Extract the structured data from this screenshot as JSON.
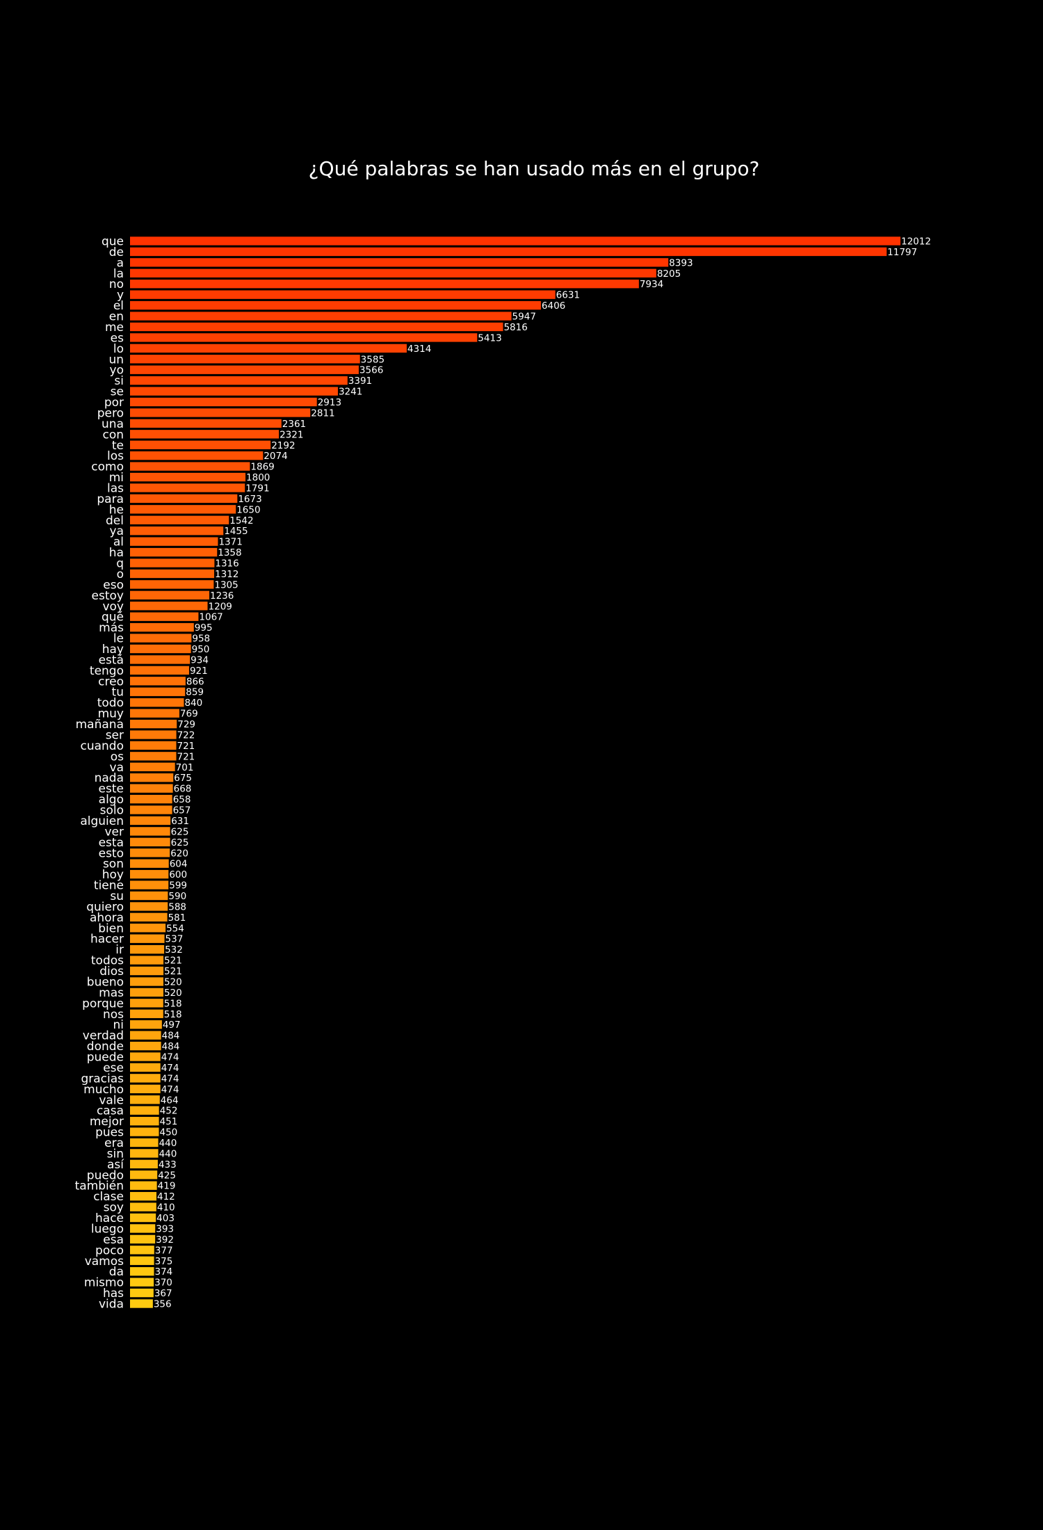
{
  "chart_data": {
    "type": "bar",
    "orientation": "horizontal",
    "title": "¿Qué palabras se han usado más en el grupo?",
    "xlabel": "",
    "ylabel": "",
    "grid": false,
    "colors": {
      "background": "#000000",
      "bar_start": "#ff3300",
      "bar_end": "#ffcc11",
      "text": "#ffffff"
    },
    "categories": [
      "que",
      "de",
      "a",
      "la",
      "no",
      "y",
      "el",
      "en",
      "me",
      "es",
      "lo",
      "un",
      "yo",
      "si",
      "se",
      "por",
      "pero",
      "una",
      "con",
      "te",
      "los",
      "como",
      "mi",
      "las",
      "para",
      "he",
      "del",
      "ya",
      "al",
      "ha",
      "q",
      "o",
      "eso",
      "estoy",
      "voy",
      "qué",
      "más",
      "le",
      "hay",
      "está",
      "tengo",
      "creo",
      "tu",
      "todo",
      "muy",
      "mañana",
      "ser",
      "cuando",
      "os",
      "va",
      "nada",
      "este",
      "algo",
      "solo",
      "alguien",
      "ver",
      "esta",
      "esto",
      "son",
      "hoy",
      "tiene",
      "su",
      "quiero",
      "ahora",
      "bien",
      "hacer",
      "ir",
      "todos",
      "dios",
      "bueno",
      "mas",
      "porque",
      "nos",
      "ni",
      "verdad",
      "donde",
      "puede",
      "ese",
      "gracias",
      "mucho",
      "vale",
      "casa",
      "mejor",
      "pues",
      "era",
      "sin",
      "así",
      "puedo",
      "también",
      "clase",
      "soy",
      "hace",
      "luego",
      "esa",
      "poco",
      "vamos",
      "da",
      "mismo",
      "has",
      "vida"
    ],
    "values": [
      12012,
      11797,
      8393,
      8205,
      7934,
      6631,
      6406,
      5947,
      5816,
      5413,
      4314,
      3585,
      3566,
      3391,
      3241,
      2913,
      2811,
      2361,
      2321,
      2192,
      2074,
      1869,
      1800,
      1791,
      1673,
      1650,
      1542,
      1455,
      1371,
      1358,
      1316,
      1312,
      1305,
      1236,
      1209,
      1067,
      995,
      958,
      950,
      934,
      921,
      866,
      859,
      840,
      769,
      729,
      722,
      721,
      721,
      701,
      675,
      668,
      658,
      657,
      631,
      625,
      625,
      620,
      604,
      600,
      599,
      590,
      588,
      581,
      554,
      537,
      532,
      521,
      521,
      520,
      520,
      518,
      518,
      497,
      484,
      484,
      474,
      474,
      474,
      474,
      464,
      452,
      451,
      450,
      440,
      440,
      433,
      425,
      419,
      412,
      410,
      403,
      393,
      392,
      377,
      375,
      374,
      370,
      367,
      356
    ]
  }
}
